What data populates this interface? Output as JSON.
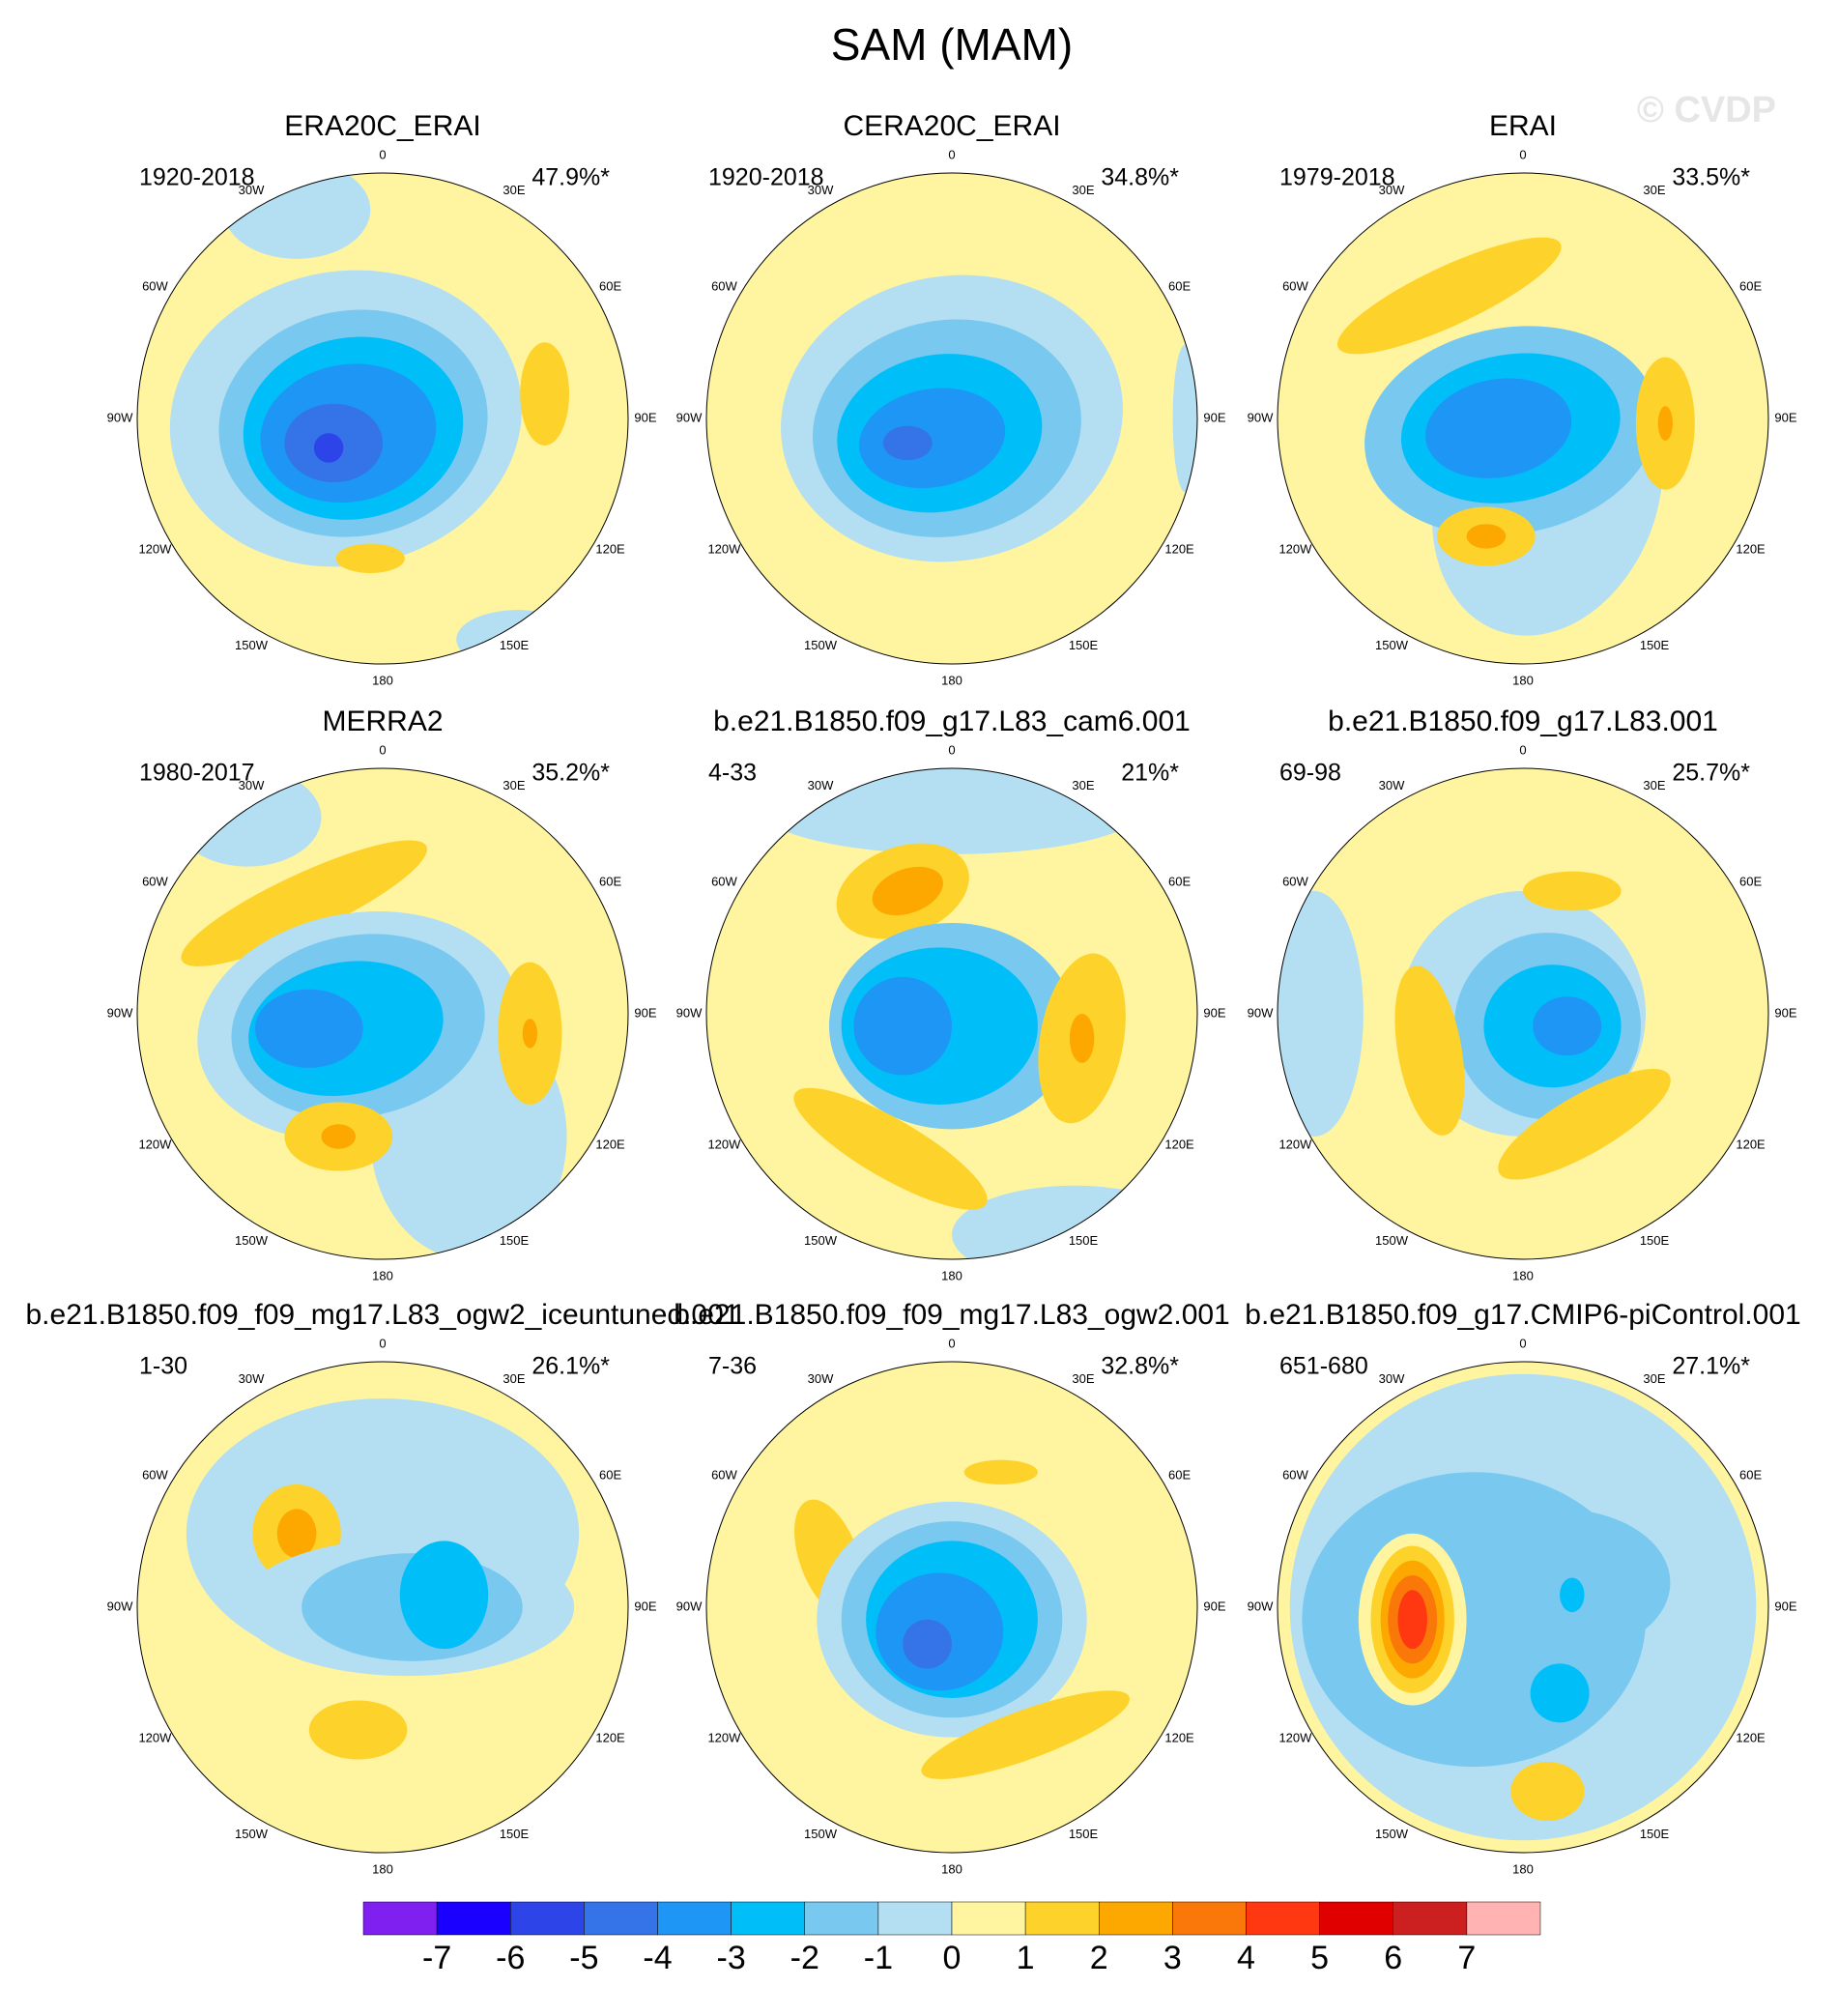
{
  "title": "SAM (MAM)",
  "watermark": "© CVDP",
  "longitude_labels": [
    "0",
    "30E",
    "60E",
    "90E",
    "120E",
    "150E",
    "180",
    "150W",
    "120W",
    "90W",
    "60W",
    "30W"
  ],
  "panels": [
    {
      "title": "ERA20C_ERAI",
      "period": "1920-2018",
      "variance": "47.9%*"
    },
    {
      "title": "CERA20C_ERAI",
      "period": "1920-2018",
      "variance": "34.8%*"
    },
    {
      "title": "ERAI",
      "period": "1979-2018",
      "variance": "33.5%*"
    },
    {
      "title": "MERRA2",
      "period": "1980-2017",
      "variance": "35.2%*"
    },
    {
      "title": "b.e21.B1850.f09_g17.L83_cam6.001",
      "period": "4-33",
      "variance": "21%*"
    },
    {
      "title": "b.e21.B1850.f09_g17.L83.001",
      "period": "69-98",
      "variance": "25.7%*"
    },
    {
      "title": "b.e21.B1850.f09_f09_mg17.L83_ogw2_iceuntuned.001",
      "period": "1-30",
      "variance": "26.1%*"
    },
    {
      "title": "b.e21.B1850.f09_f09_mg17.L83_ogw2.001",
      "period": "7-36",
      "variance": "32.8%*"
    },
    {
      "title": "b.e21.B1850.f09_g17.CMIP6-piControl.001",
      "period": "651-680",
      "variance": "27.1%*"
    }
  ],
  "colorbar": {
    "levels": [
      -7,
      -6,
      -5,
      -4,
      -3,
      -2,
      -1,
      0,
      1,
      2,
      3,
      4,
      5,
      6,
      7
    ],
    "colors": [
      "#8020f0",
      "#1a00ff",
      "#2c44e8",
      "#3474e8",
      "#1e96f5",
      "#00bff8",
      "#78c8f0",
      "#b4def2",
      "#fff5a0",
      "#fdd22a",
      "#fda800",
      "#fa780a",
      "#ff3812",
      "#e00000",
      "#cc1f1f",
      "#ffb3b3"
    ]
  }
}
